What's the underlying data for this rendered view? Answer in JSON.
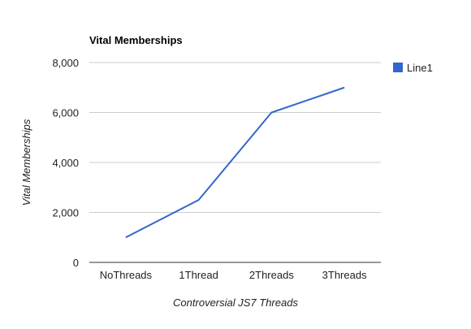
{
  "chart_data": {
    "type": "line",
    "title": "Vital Memberships",
    "xlabel": "Controversial JS7 Threads",
    "ylabel": "Vital Memberships",
    "categories": [
      "NoThreads",
      "1Thread",
      "2Threads",
      "3Threads"
    ],
    "series": [
      {
        "name": "Line1",
        "values": [
          1000,
          2500,
          6000,
          7000
        ],
        "color": "#3366cc"
      }
    ],
    "ylim": [
      0,
      8000
    ],
    "yticks": [
      0,
      2000,
      4000,
      6000,
      8000
    ],
    "ytick_labels": [
      "0",
      "2,000",
      "4,000",
      "6,000",
      "8,000"
    ],
    "grid": true,
    "legend_position": "right"
  }
}
